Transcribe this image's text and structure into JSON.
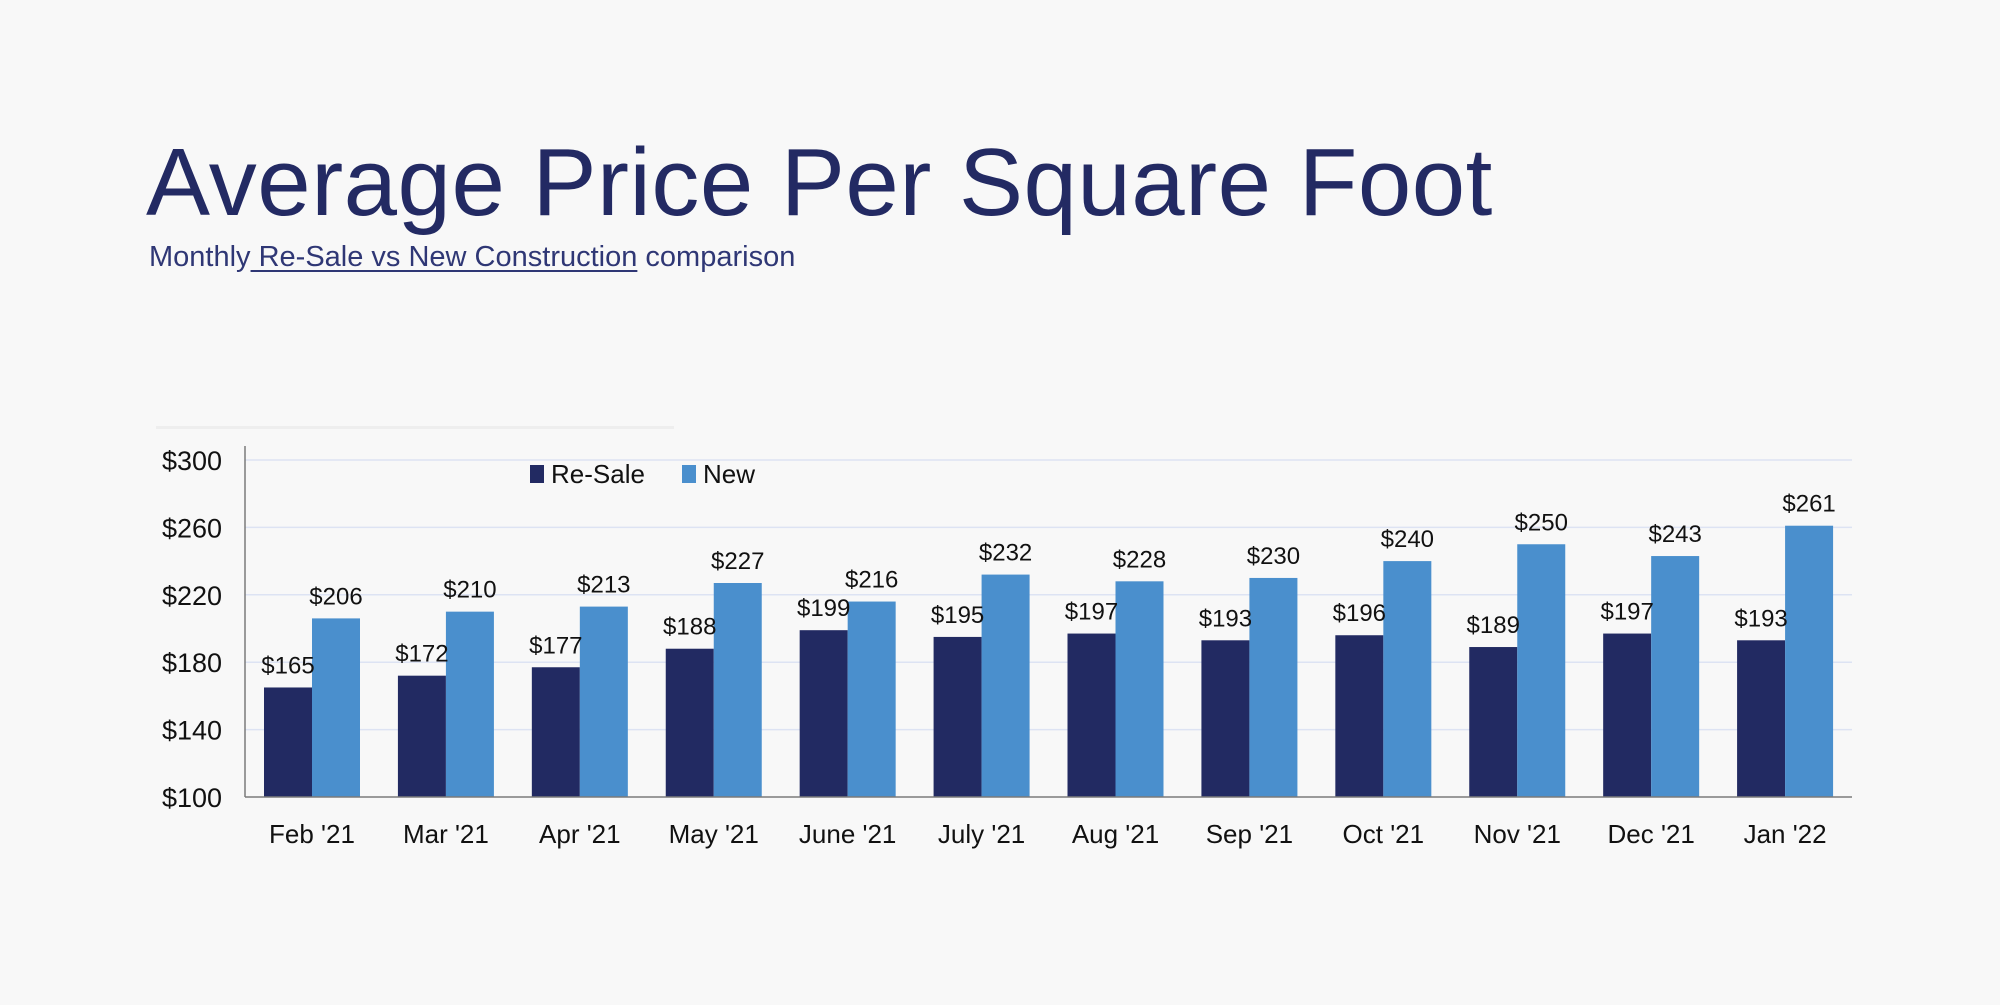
{
  "title": "Average Price Per Square Foot",
  "subtitle": {
    "prefix": "Monthly",
    "underlined": " Re-Sale vs New Construction",
    "suffix": " comparison"
  },
  "chart_data": {
    "type": "bar",
    "categories": [
      "Feb '21",
      "Mar '21",
      "Apr '21",
      "May '21",
      "June '21",
      "July '21",
      "Aug '21",
      "Sep '21",
      "Oct '21",
      "Nov '21",
      "Dec '21",
      "Jan '22"
    ],
    "series": [
      {
        "name": "Re-Sale",
        "color": "#222a62",
        "values": [
          165,
          172,
          177,
          188,
          199,
          195,
          197,
          193,
          196,
          189,
          197,
          193
        ],
        "labels": [
          "$165",
          "$172",
          "$177",
          "$188",
          "$199",
          "$195",
          "$197",
          "$193",
          "$196",
          "$189",
          "$197",
          "$193"
        ]
      },
      {
        "name": "New",
        "color": "#4a8fcd",
        "values": [
          206,
          210,
          213,
          227,
          216,
          232,
          228,
          230,
          240,
          250,
          243,
          261
        ],
        "labels": [
          "$206",
          "$210",
          "$213",
          "$227",
          "$216",
          "$232",
          "$228",
          "$230",
          "$240",
          "$250",
          "$243",
          "$261"
        ]
      }
    ],
    "ylim": [
      100,
      300
    ],
    "yticks": [
      100,
      140,
      180,
      220,
      260,
      300
    ],
    "ytick_labels": [
      "$100",
      "$140",
      "$180",
      "$220",
      "$260",
      "$300"
    ],
    "grid": true,
    "legend_position": "top-left",
    "xlabel": "",
    "ylabel": ""
  }
}
